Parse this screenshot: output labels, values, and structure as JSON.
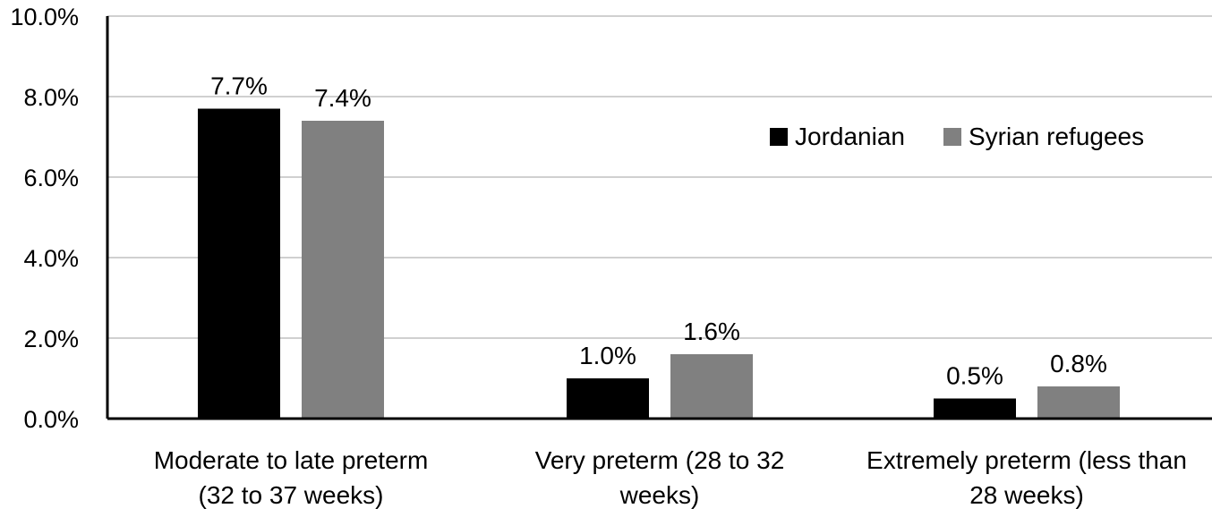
{
  "chart_data": {
    "type": "bar",
    "title": "",
    "xlabel": "",
    "ylabel": "",
    "ylim": [
      0,
      10
    ],
    "y_ticks": [
      0,
      2,
      4,
      6,
      8,
      10
    ],
    "y_tick_labels": [
      "0.0%",
      "2.0%",
      "4.0%",
      "6.0%",
      "8.0%",
      "10.0%"
    ],
    "grid": true,
    "legend_position": "top-right",
    "categories": [
      [
        "Moderate to late preterm",
        "(32 to 37 weeks)"
      ],
      [
        "Very preterm (28 to 32",
        "weeks)"
      ],
      [
        "Extremely preterm (less than",
        "28 weeks)"
      ]
    ],
    "series": [
      {
        "name": "Jordanian",
        "color": "#000000",
        "values": [
          7.7,
          1.0,
          0.5
        ],
        "labels": [
          "7.7%",
          "1.0%",
          "0.5%"
        ]
      },
      {
        "name": "Syrian refugees",
        "color": "#808080",
        "values": [
          7.4,
          1.6,
          0.8
        ],
        "labels": [
          "7.4%",
          "1.6%",
          "0.8%"
        ]
      }
    ]
  }
}
